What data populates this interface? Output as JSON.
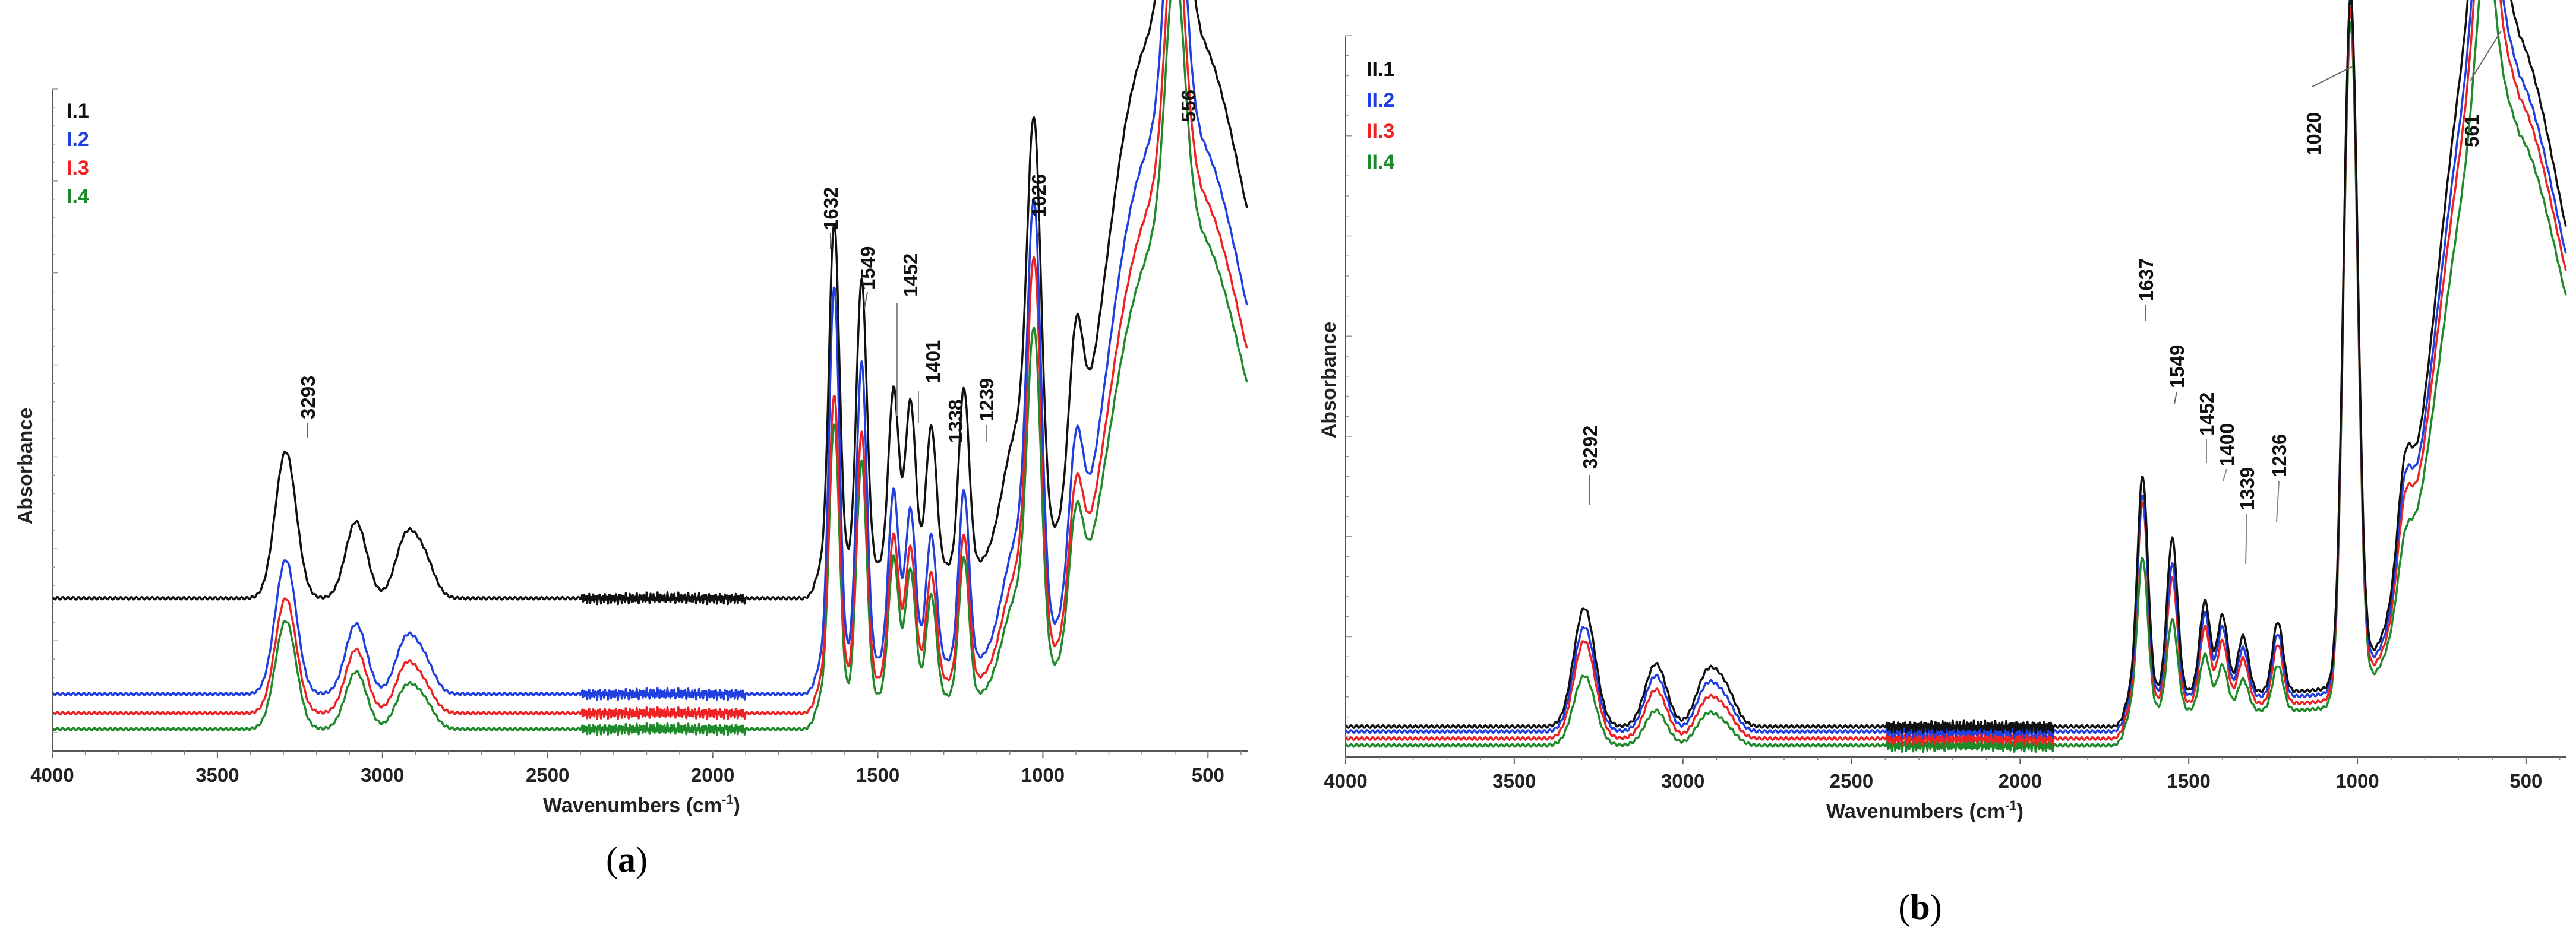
{
  "figure": {
    "panels": [
      {
        "id": "a",
        "label_open": "(",
        "label_letter": "a",
        "label_close": ")"
      },
      {
        "id": "b",
        "label_open": "(",
        "label_letter": "b",
        "label_close": ")"
      }
    ]
  },
  "chart_data": [
    {
      "type": "line",
      "panel": "a",
      "title": "",
      "xlabel": "Wavenumbers (cm-1)",
      "xlabel_main": "Wavenumbers (cm",
      "xlabel_sup": "-1",
      "xlabel_end": ")",
      "ylabel": "Absorbance",
      "xlim": [
        4000,
        380
      ],
      "xticks": [
        4000,
        3500,
        3000,
        2500,
        2000,
        1500,
        1000,
        500
      ],
      "legend_position": "top-left",
      "series": [
        {
          "name": "I.1",
          "color": "#111111",
          "offset": 0.23,
          "peak_heights": {
            "3293": 0.23,
            "3080": 0.12,
            "2930": 0.09,
            "2875": 0.06,
            "1632": 0.54,
            "1549": 0.45,
            "1452": 0.28,
            "1401": 0.26,
            "1338": 0.22,
            "1239": 0.28,
            "1080": 0.2,
            "1026": 0.6,
            "900": 0.24,
            "556": 0.84,
            "600": 0.46,
            "750": 0.28
          },
          "end_value": 0.48
        },
        {
          "name": "I.2",
          "color": "#1f3fe0",
          "offset": 0.08,
          "peak_heights": {
            "3293": 0.21,
            "3080": 0.11,
            "2930": 0.08,
            "2875": 0.05,
            "1632": 0.59,
            "1549": 0.47,
            "1452": 0.27,
            "1401": 0.24,
            "1338": 0.2,
            "1239": 0.27,
            "1080": 0.18,
            "1026": 0.63,
            "900": 0.22,
            "556": 0.83,
            "600": 0.45,
            "750": 0.26
          },
          "end_value": 0.34
        },
        {
          "name": "I.3",
          "color": "#ee2222",
          "offset": 0.05,
          "peak_heights": {
            "3293": 0.18,
            "3080": 0.1,
            "2930": 0.07,
            "2875": 0.04,
            "1632": 0.45,
            "1549": 0.39,
            "1452": 0.23,
            "1401": 0.21,
            "1338": 0.17,
            "1239": 0.23,
            "1080": 0.16,
            "1026": 0.58,
            "900": 0.19,
            "556": 0.78,
            "600": 0.41,
            "750": 0.22
          },
          "end_value": 0.28
        },
        {
          "name": "I.4",
          "color": "#1e8a2a",
          "offset": 0.025,
          "peak_heights": {
            "3293": 0.17,
            "3080": 0.09,
            "2930": 0.06,
            "2875": 0.04,
            "1632": 0.43,
            "1549": 0.37,
            "1452": 0.22,
            "1401": 0.2,
            "1338": 0.16,
            "1239": 0.22,
            "1080": 0.15,
            "1026": 0.5,
            "900": 0.18,
            "556": 0.74,
            "600": 0.39,
            "750": 0.2
          },
          "end_value": 0.24
        }
      ],
      "peak_labels": [
        "3293",
        "1632",
        "1549",
        "1452",
        "1401",
        "1338",
        "1239",
        "1026",
        "556"
      ]
    },
    {
      "type": "line",
      "panel": "b",
      "title": "",
      "xlabel": "Wavenumbers (cm-1)",
      "xlabel_main": "Wavenumbers (cm",
      "xlabel_sup": "-1",
      "xlabel_end": ")",
      "ylabel": "Absorbance",
      "xlim": [
        4000,
        380
      ],
      "xticks": [
        4000,
        3500,
        3000,
        2500,
        2000,
        1500,
        1000,
        500
      ],
      "legend_position": "top-left",
      "series": [
        {
          "name": "II.1",
          "color": "#111111",
          "offset": 0.035,
          "peak_heights": {
            "3292": 0.17,
            "3080": 0.09,
            "2930": 0.07,
            "2875": 0.05,
            "1637": 0.31,
            "1549": 0.22,
            "1452": 0.13,
            "1400": 0.11,
            "1339": 0.08,
            "1236": 0.1,
            "1020": 0.98,
            "860": 0.13,
            "620": 0.3,
            "561": 0.95,
            "700": 0.2
          },
          "end_value": 0.46
        },
        {
          "name": "II.2",
          "color": "#1f3fe0",
          "offset": 0.028,
          "peak_heights": {
            "3292": 0.15,
            "3080": 0.08,
            "2930": 0.06,
            "2875": 0.04,
            "1637": 0.29,
            "1549": 0.19,
            "1452": 0.12,
            "1400": 0.1,
            "1339": 0.07,
            "1236": 0.09,
            "1020": 0.99,
            "860": 0.12,
            "620": 0.28,
            "561": 0.9,
            "700": 0.18
          },
          "end_value": 0.44
        },
        {
          "name": "II.3",
          "color": "#ee2222",
          "offset": 0.018,
          "peak_heights": {
            "3292": 0.14,
            "3080": 0.07,
            "2930": 0.05,
            "2875": 0.035,
            "1637": 0.29,
            "1549": 0.18,
            "1452": 0.11,
            "1400": 0.09,
            "1339": 0.065,
            "1236": 0.085,
            "1020": 0.98,
            "860": 0.11,
            "620": 0.26,
            "561": 0.88,
            "700": 0.16
          },
          "end_value": 0.42
        },
        {
          "name": "II.4",
          "color": "#1e8a2a",
          "offset": 0.008,
          "peak_heights": {
            "3292": 0.1,
            "3080": 0.05,
            "2930": 0.04,
            "2875": 0.025,
            "1637": 0.22,
            "1549": 0.13,
            "1452": 0.08,
            "1400": 0.065,
            "1339": 0.045,
            "1236": 0.065,
            "1020": 0.97,
            "860": 0.08,
            "620": 0.22,
            "561": 0.84,
            "700": 0.12
          },
          "end_value": 0.4
        }
      ],
      "peak_labels": [
        "3292",
        "1637",
        "1549",
        "1452",
        "1400",
        "1339",
        "1236",
        "1020",
        "561"
      ]
    }
  ]
}
